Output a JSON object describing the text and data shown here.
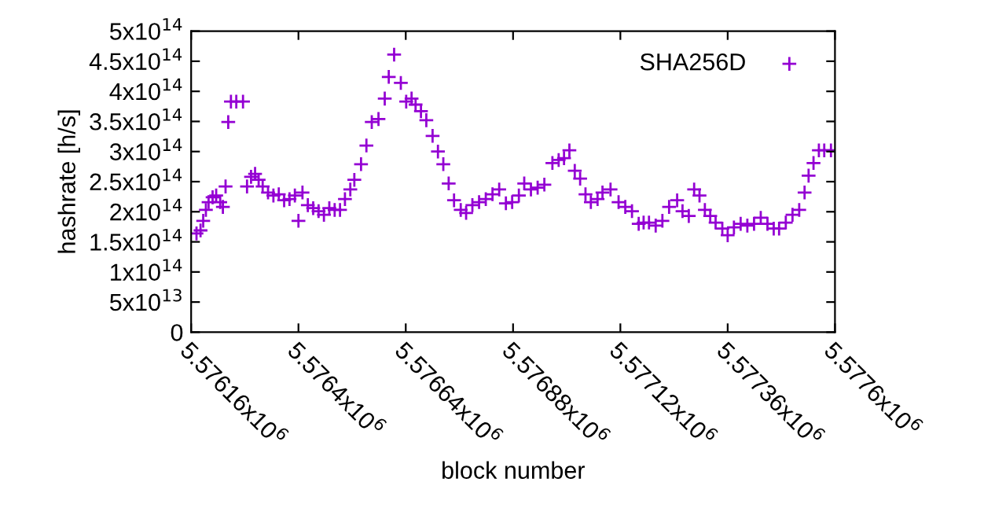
{
  "chart_data": {
    "type": "scatter",
    "xlabel": "block number",
    "ylabel": "hashrate [h/s]",
    "x": [
      5576172,
      5576181,
      5576187,
      5576193,
      5576199,
      5576208,
      5576216,
      5576225,
      5576231,
      5576237,
      5576243,
      5576249,
      5576261,
      5576276,
      5576285,
      5576294,
      5576303,
      5576311,
      5576320,
      5576332,
      5576344,
      5576356,
      5576368,
      5576380,
      5576392,
      5576400,
      5576409,
      5576421,
      5576433,
      5576445,
      5576457,
      5576469,
      5576481,
      5576493,
      5576504,
      5576516,
      5576525,
      5576540,
      5576552,
      5576564,
      5576579,
      5576593,
      5576602,
      5576614,
      5576629,
      5576641,
      5576653,
      5576662,
      5576674,
      5576686,
      5576700,
      5576712,
      5576724,
      5576736,
      5576748,
      5576763,
      5576775,
      5576789,
      5576804,
      5576819,
      5576834,
      5576849,
      5576864,
      5576878,
      5576893,
      5576905,
      5576920,
      5576935,
      5576950,
      5576968,
      5576982,
      5576994,
      5577006,
      5577018,
      5577030,
      5577042,
      5577054,
      5577069,
      5577080,
      5577098,
      5577116,
      5577131,
      5577146,
      5577161,
      5577172,
      5577184,
      5577199,
      5577214,
      5577229,
      5577247,
      5577259,
      5577273,
      5577285,
      5577297,
      5577309,
      5577321,
      5577333,
      5577348,
      5577360,
      5577374,
      5577389,
      5577404,
      5577419,
      5577434,
      5577449,
      5577463,
      5577475,
      5577490,
      5577505,
      5577520,
      5577532,
      5577541,
      5577552,
      5577564,
      5577576,
      5577591
    ],
    "series": [
      {
        "name": "SHA256D",
        "color": "#9400d3",
        "values": [
          164000000000000.0,
          169000000000000.0,
          185000000000000.0,
          203000000000000.0,
          216000000000000.0,
          224000000000000.0,
          227000000000000.0,
          216000000000000.0,
          208000000000000.0,
          242000000000000.0,
          349000000000000.0,
          383000000000000.0,
          383000000000000.0,
          383000000000000.0,
          242000000000000.0,
          258000000000000.0,
          263000000000000.0,
          253000000000000.0,
          242000000000000.0,
          232000000000000.0,
          227000000000000.0,
          229000000000000.0,
          219000000000000.0,
          221000000000000.0,
          227000000000000.0,
          185000000000000.0,
          232000000000000.0,
          211000000000000.0,
          206000000000000.0,
          201000000000000.0,
          195000000000000.0,
          206000000000000.0,
          203000000000000.0,
          203000000000000.0,
          221000000000000.0,
          237000000000000.0,
          253000000000000.0,
          279000000000000.0,
          310000000000000.0,
          349000000000000.0,
          354000000000000.0,
          388000000000000.0,
          424000000000000.0,
          461000000000000.0,
          414000000000000.0,
          383000000000000.0,
          388000000000000.0,
          378000000000000.0,
          367000000000000.0,
          352000000000000.0,
          326000000000000.0,
          300000000000000.0,
          279000000000000.0,
          247000000000000.0,
          219000000000000.0,
          203000000000000.0,
          198000000000000.0,
          211000000000000.0,
          216000000000000.0,
          221000000000000.0,
          229000000000000.0,
          237000000000000.0,
          214000000000000.0,
          216000000000000.0,
          227000000000000.0,
          247000000000000.0,
          237000000000000.0,
          240000000000000.0,
          245000000000000.0,
          281000000000000.0,
          286000000000000.0,
          289000000000000.0,
          302000000000000.0,
          268000000000000.0,
          255000000000000.0,
          229000000000000.0,
          216000000000000.0,
          221000000000000.0,
          232000000000000.0,
          237000000000000.0,
          216000000000000.0,
          208000000000000.0,
          201000000000000.0,
          180000000000000.0,
          182000000000000.0,
          182000000000000.0,
          177000000000000.0,
          185000000000000.0,
          208000000000000.0,
          219000000000000.0,
          201000000000000.0,
          193000000000000.0,
          237000000000000.0,
          227000000000000.0,
          203000000000000.0,
          193000000000000.0,
          182000000000000.0,
          172000000000000.0,
          161000000000000.0,
          174000000000000.0,
          180000000000000.0,
          177000000000000.0,
          180000000000000.0,
          190000000000000.0,
          180000000000000.0,
          172000000000000.0,
          172000000000000.0,
          182000000000000.0,
          195000000000000.0,
          203000000000000.0,
          232000000000000.0,
          260000000000000.0,
          281000000000000.0,
          302000000000000.0,
          302000000000000.0,
          302000000000000.0
        ]
      }
    ],
    "marker": "cross",
    "legend": "top right",
    "grid": false,
    "xlim": [
      5576160,
      5577600
    ],
    "xticks": [
      {
        "value": 5576160,
        "label": "5.57616x10$^{6}$"
      },
      {
        "value": 5576400,
        "label": "5.5764x10$^{6}$"
      },
      {
        "value": 5576640,
        "label": "5.57664x10$^{6}$"
      },
      {
        "value": 5576880,
        "label": "5.57688x10$^{6}$"
      },
      {
        "value": 5577120,
        "label": "5.57712x10$^{6}$"
      },
      {
        "value": 5577360,
        "label": "5.57736x10$^{6}$"
      },
      {
        "value": 5577600,
        "label": "5.5776x10$^{6}$"
      }
    ],
    "ylim": [
      0,
      500000000000000.0
    ],
    "yticks": [
      {
        "value": 0,
        "label": "0"
      },
      {
        "value": 50000000000000.0,
        "label": "5x10$^{13}$"
      },
      {
        "value": 100000000000000.0,
        "label": "1x10$^{14}$"
      },
      {
        "value": 150000000000000.0,
        "label": "1.5x10$^{14}$"
      },
      {
        "value": 200000000000000.0,
        "label": "2x10$^{14}$"
      },
      {
        "value": 250000000000000.0,
        "label": "2.5x10$^{14}$"
      },
      {
        "value": 300000000000000.0,
        "label": "3x10$^{14}$"
      },
      {
        "value": 350000000000000.0,
        "label": "3.5x10$^{14}$"
      },
      {
        "value": 400000000000000.0,
        "label": "4x10$^{14}$"
      },
      {
        "value": 450000000000000.0,
        "label": "4.5x10$^{14}$"
      },
      {
        "value": 500000000000000.0,
        "label": "5x10$^{14}$"
      }
    ]
  }
}
